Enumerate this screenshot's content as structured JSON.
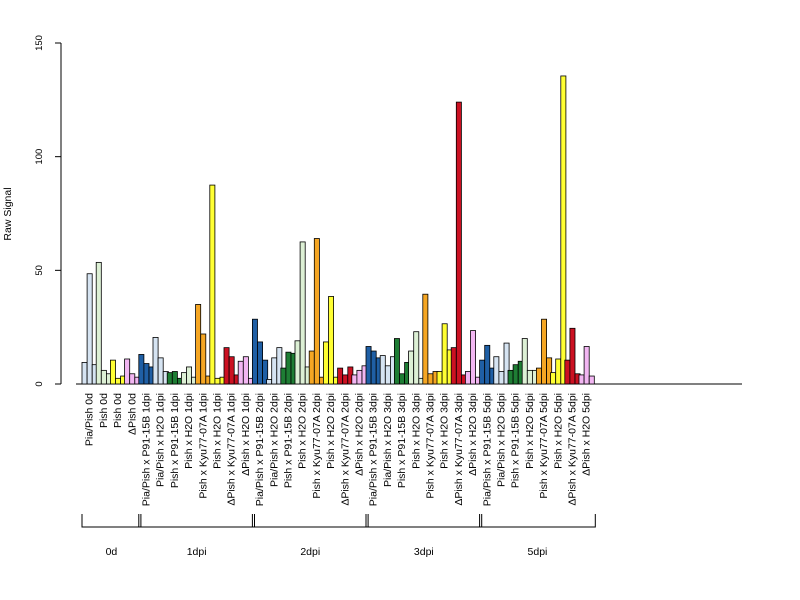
{
  "chart_data": {
    "type": "bar",
    "ylabel": "Raw Signal",
    "xlabel": "",
    "ylim": [
      0,
      150
    ],
    "yticks": [
      0,
      50,
      100,
      150
    ],
    "grid": false,
    "categories": [
      {
        "label": "Pia/Pish 0d",
        "color": "#d6e4f2",
        "values": [
          9.5,
          48.5,
          8.5
        ]
      },
      {
        "label": "Pish 0d",
        "color": "#ddf0d5",
        "values": [
          53.5,
          6,
          4.5
        ]
      },
      {
        "label": "Pish 0d",
        "color": "#ffff33",
        "values": [
          10.5,
          2.5,
          3.5
        ]
      },
      {
        "label": "ΔPish 0d",
        "color": "#f2b6f2",
        "values": [
          11,
          4.5,
          3
        ]
      },
      {
        "label": "Pia/Pish x P91-15B 1dpi",
        "color": "#1f5fa5",
        "values": [
          13,
          9,
          7.5
        ]
      },
      {
        "label": "Pia/Pish x H2O 1dpi",
        "color": "#d6e4f2",
        "values": [
          20.5,
          11.5,
          5.5
        ]
      },
      {
        "label": "Pish x P91-15B 1dpi",
        "color": "#1e7d34",
        "values": [
          5,
          5.5,
          2.5
        ]
      },
      {
        "label": "Pish x H2O 1dpi",
        "color": "#ddf0d5",
        "values": [
          5,
          7.5,
          3
        ]
      },
      {
        "label": "Pish x Kyu77-07A 1dpi",
        "color": "#f5a623",
        "values": [
          35,
          22,
          3.5
        ]
      },
      {
        "label": "Pish x H2O 1dpi",
        "color": "#ffff33",
        "values": [
          87.5,
          2.5,
          3
        ]
      },
      {
        "label": "ΔPish x Kyu77-07A 1dpi",
        "color": "#cc1122",
        "values": [
          16,
          12,
          4
        ]
      },
      {
        "label": "ΔPish x H2O 1dpi",
        "color": "#f2b6f2",
        "values": [
          10,
          12,
          2.5
        ]
      },
      {
        "label": "Pia/Pish x P91-15B 2dpi",
        "color": "#1f5fa5",
        "values": [
          28.5,
          18.5,
          10.5
        ]
      },
      {
        "label": "Pia/Pish x H2O 2dpi",
        "color": "#d6e4f2",
        "values": [
          2,
          11.5,
          16
        ]
      },
      {
        "label": "Pish x P91-15B 2dpi",
        "color": "#1e7d34",
        "values": [
          7,
          14,
          13.5
        ]
      },
      {
        "label": "Pish x H2O 2dpi",
        "color": "#ddf0d5",
        "values": [
          19,
          62.5,
          7.5
        ]
      },
      {
        "label": "Pish x Kyu77-07A 2dpi",
        "color": "#f5a623",
        "values": [
          14.5,
          64,
          3
        ]
      },
      {
        "label": "Pish x H2O 2dpi",
        "color": "#ffff33",
        "values": [
          18.5,
          38.5,
          3
        ]
      },
      {
        "label": "ΔPish x Kyu77-07A 2dpi",
        "color": "#cc1122",
        "values": [
          7,
          4,
          7.5
        ]
      },
      {
        "label": "ΔPish x H2O 2dpi",
        "color": "#f2b6f2",
        "values": [
          4,
          6,
          8
        ]
      },
      {
        "label": "Pia/Pish x P91-15B 3dpi",
        "color": "#1f5fa5",
        "values": [
          16.5,
          14.5,
          11.5
        ]
      },
      {
        "label": "Pia/Pish x H2O 3dpi",
        "color": "#d6e4f2",
        "values": [
          12.5,
          8,
          12
        ]
      },
      {
        "label": "Pish x P91-15B 3dpi",
        "color": "#1e7d34",
        "values": [
          20,
          4.5,
          9.5
        ]
      },
      {
        "label": "Pish x H2O 3dpi",
        "color": "#ddf0d5",
        "values": [
          14.5,
          23,
          2.5
        ]
      },
      {
        "label": "Pish x Kyu77-07A 3dpi",
        "color": "#f5a623",
        "values": [
          39.5,
          4.5,
          5.5
        ]
      },
      {
        "label": "Pish x H2O 3dpi",
        "color": "#ffff33",
        "values": [
          5.5,
          26.5,
          15
        ]
      },
      {
        "label": "ΔPish x Kyu77-07A 3dpi",
        "color": "#cc1122",
        "values": [
          16,
          124,
          4
        ]
      },
      {
        "label": "ΔPish x H2O 3dpi",
        "color": "#f2b6f2",
        "values": [
          5.5,
          23.5,
          3
        ]
      },
      {
        "label": "Pia/Pish x P91-15B 5dpi",
        "color": "#1f5fa5",
        "values": [
          10.5,
          17,
          7
        ]
      },
      {
        "label": "Pia/Pish x H2O 5dpi",
        "color": "#d6e4f2",
        "values": [
          12,
          5.5,
          18
        ]
      },
      {
        "label": "Pish x P91-15B 5dpi",
        "color": "#1e7d34",
        "values": [
          6,
          8.5,
          10
        ]
      },
      {
        "label": "Pish x H2O 5dpi",
        "color": "#ddf0d5",
        "values": [
          20,
          6,
          6
        ]
      },
      {
        "label": "Pish x Kyu77-07A 5dpi",
        "color": "#f5a623",
        "values": [
          7,
          28.5,
          11.5
        ]
      },
      {
        "label": "Pish x H2O 5dpi",
        "color": "#ffff33",
        "values": [
          5,
          11,
          135.5
        ]
      },
      {
        "label": "ΔPish x Kyu77-07A 5dpi",
        "color": "#cc1122",
        "values": [
          10.5,
          24.5,
          4.5
        ]
      },
      {
        "label": "ΔPish x H2O 5dpi",
        "color": "#f2b6f2",
        "values": [
          4,
          16.5,
          3.5
        ]
      }
    ],
    "groups": [
      {
        "label": "0d",
        "start": 0,
        "end": 3
      },
      {
        "label": "1dpi",
        "start": 4,
        "end": 11
      },
      {
        "label": "2dpi",
        "start": 12,
        "end": 19
      },
      {
        "label": "3dpi",
        "start": 20,
        "end": 27
      },
      {
        "label": "5dpi",
        "start": 28,
        "end": 35
      }
    ]
  }
}
